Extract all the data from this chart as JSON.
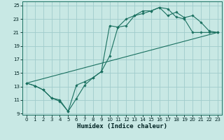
{
  "xlabel": "Humidex (Indice chaleur)",
  "background_color": "#c8e8e4",
  "grid_color": "#a0cccc",
  "line_color": "#1a7060",
  "xlim": [
    -0.5,
    23.5
  ],
  "ylim": [
    8.8,
    25.6
  ],
  "xticks": [
    0,
    1,
    2,
    3,
    4,
    5,
    6,
    7,
    8,
    9,
    10,
    11,
    12,
    13,
    14,
    15,
    16,
    17,
    18,
    19,
    20,
    21,
    22,
    23
  ],
  "yticks": [
    9,
    11,
    13,
    15,
    17,
    19,
    21,
    23,
    25
  ],
  "line1_x": [
    0,
    1,
    2,
    3,
    4,
    5,
    6,
    7,
    8,
    9,
    10,
    11,
    12,
    13,
    14,
    15,
    16,
    17,
    18,
    19,
    20,
    21,
    22,
    23
  ],
  "line1_y": [
    13.5,
    13.1,
    12.5,
    11.3,
    10.8,
    9.3,
    13.2,
    13.7,
    14.3,
    15.2,
    22.0,
    21.8,
    23.0,
    23.5,
    23.8,
    24.2,
    24.7,
    24.5,
    23.3,
    23.0,
    21.0,
    21.0,
    21.0,
    21.0
  ],
  "line2_x": [
    0,
    1,
    2,
    3,
    4,
    5,
    6,
    7,
    8,
    9,
    10,
    11,
    12,
    13,
    14,
    15,
    16,
    17,
    18,
    19,
    20,
    21,
    22,
    23
  ],
  "line2_y": [
    13.5,
    13.1,
    12.5,
    11.3,
    11.0,
    9.3,
    11.2,
    13.2,
    14.3,
    15.2,
    17.5,
    21.8,
    22.0,
    23.5,
    24.2,
    24.2,
    24.7,
    23.5,
    24.0,
    23.2,
    23.5,
    22.5,
    21.2,
    21.0
  ],
  "line3_x": [
    0,
    23
  ],
  "line3_y": [
    13.5,
    21.0
  ]
}
